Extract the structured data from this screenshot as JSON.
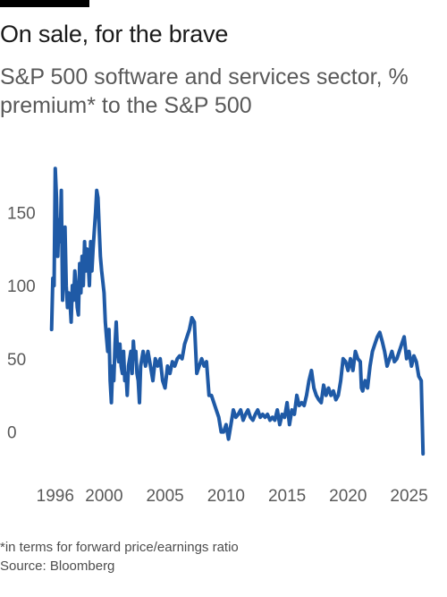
{
  "header": {
    "title": "On sale, for the brave",
    "subtitle": "S&P 500 software and services sector, % premium* to the S&P 500"
  },
  "footer": {
    "note": "*in terms for forward price/earnings ratio",
    "source": "Source: Bloomberg"
  },
  "colors": {
    "line": "#1f5aa6",
    "text": "#1a1a1a",
    "subtitle": "#595959",
    "topbar": "#000000"
  },
  "chart_data": {
    "type": "line",
    "title": "",
    "xlabel": "",
    "ylabel": "",
    "xlim": [
      1995.5,
      2026.5
    ],
    "ylim": [
      -18,
      182
    ],
    "y_ticks": [
      0,
      50,
      100,
      150
    ],
    "x_ticks": [
      1996,
      2000,
      2005,
      2010,
      2015,
      2020,
      2025
    ],
    "x_tick_labels": [
      "1996",
      "2000",
      "2005",
      "2010",
      "2015",
      "2020",
      "2025"
    ],
    "grid": false,
    "series": [
      {
        "points": [
          [
            1995.7,
            70
          ],
          [
            1995.8,
            105
          ],
          [
            1995.9,
            100
          ],
          [
            1996.0,
            180
          ],
          [
            1996.1,
            160
          ],
          [
            1996.2,
            120
          ],
          [
            1996.3,
            145
          ],
          [
            1996.4,
            130
          ],
          [
            1996.5,
            165
          ],
          [
            1996.6,
            90
          ],
          [
            1996.7,
            120
          ],
          [
            1996.8,
            140
          ],
          [
            1996.9,
            100
          ],
          [
            1997.0,
            85
          ],
          [
            1997.1,
            95
          ],
          [
            1997.2,
            90
          ],
          [
            1997.3,
            75
          ],
          [
            1997.4,
            100
          ],
          [
            1997.5,
            90
          ],
          [
            1997.6,
            110
          ],
          [
            1997.7,
            100
          ],
          [
            1997.8,
            85
          ],
          [
            1997.9,
            80
          ],
          [
            1998.0,
            115
          ],
          [
            1998.1,
            95
          ],
          [
            1998.2,
            120
          ],
          [
            1998.3,
            100
          ],
          [
            1998.4,
            130
          ],
          [
            1998.5,
            110
          ],
          [
            1998.6,
            125
          ],
          [
            1998.7,
            115
          ],
          [
            1998.8,
            100
          ],
          [
            1998.9,
            130
          ],
          [
            1999.0,
            110
          ],
          [
            1999.1,
            125
          ],
          [
            1999.3,
            150
          ],
          [
            1999.4,
            165
          ],
          [
            1999.5,
            160
          ],
          [
            1999.6,
            140
          ],
          [
            1999.7,
            120
          ],
          [
            1999.8,
            110
          ],
          [
            2000.0,
            95
          ],
          [
            2000.1,
            75
          ],
          [
            2000.2,
            65
          ],
          [
            2000.3,
            55
          ],
          [
            2000.4,
            70
          ],
          [
            2000.5,
            35
          ],
          [
            2000.6,
            20
          ],
          [
            2000.7,
            45
          ],
          [
            2000.8,
            35
          ],
          [
            2000.9,
            60
          ],
          [
            2001.0,
            75
          ],
          [
            2001.1,
            55
          ],
          [
            2001.2,
            48
          ],
          [
            2001.3,
            60
          ],
          [
            2001.4,
            45
          ],
          [
            2001.5,
            40
          ],
          [
            2001.6,
            55
          ],
          [
            2001.7,
            35
          ],
          [
            2001.8,
            40
          ],
          [
            2001.9,
            25
          ],
          [
            2002.0,
            45
          ],
          [
            2002.2,
            55
          ],
          [
            2002.3,
            40
          ],
          [
            2002.4,
            62
          ],
          [
            2002.5,
            50
          ],
          [
            2002.6,
            55
          ],
          [
            2002.7,
            40
          ],
          [
            2002.8,
            35
          ],
          [
            2002.9,
            20
          ],
          [
            2003.0,
            45
          ],
          [
            2003.2,
            55
          ],
          [
            2003.4,
            45
          ],
          [
            2003.6,
            55
          ],
          [
            2003.8,
            45
          ],
          [
            2004.0,
            35
          ],
          [
            2004.2,
            50
          ],
          [
            2004.4,
            45
          ],
          [
            2004.6,
            50
          ],
          [
            2004.8,
            35
          ],
          [
            2005.0,
            30
          ],
          [
            2005.2,
            45
          ],
          [
            2005.4,
            40
          ],
          [
            2005.6,
            48
          ],
          [
            2005.8,
            45
          ],
          [
            2006.0,
            50
          ],
          [
            2006.2,
            52
          ],
          [
            2006.4,
            50
          ],
          [
            2006.6,
            60
          ],
          [
            2006.8,
            65
          ],
          [
            2007.0,
            70
          ],
          [
            2007.2,
            78
          ],
          [
            2007.4,
            75
          ],
          [
            2007.6,
            40
          ],
          [
            2007.8,
            45
          ],
          [
            2008.0,
            50
          ],
          [
            2008.2,
            45
          ],
          [
            2008.4,
            48
          ],
          [
            2008.6,
            25
          ],
          [
            2008.8,
            25
          ],
          [
            2009.0,
            20
          ],
          [
            2009.2,
            15
          ],
          [
            2009.4,
            10
          ],
          [
            2009.6,
            0
          ],
          [
            2009.8,
            0
          ],
          [
            2010.0,
            5
          ],
          [
            2010.2,
            -5
          ],
          [
            2010.4,
            5
          ],
          [
            2010.6,
            15
          ],
          [
            2010.8,
            10
          ],
          [
            2011.0,
            12
          ],
          [
            2011.2,
            15
          ],
          [
            2011.4,
            8
          ],
          [
            2011.6,
            12
          ],
          [
            2011.8,
            15
          ],
          [
            2012.0,
            10
          ],
          [
            2012.2,
            8
          ],
          [
            2012.4,
            12
          ],
          [
            2012.6,
            15
          ],
          [
            2012.8,
            10
          ],
          [
            2013.0,
            12
          ],
          [
            2013.2,
            10
          ],
          [
            2013.4,
            12
          ],
          [
            2013.6,
            8
          ],
          [
            2013.8,
            10
          ],
          [
            2014.0,
            8
          ],
          [
            2014.2,
            15
          ],
          [
            2014.4,
            5
          ],
          [
            2014.6,
            12
          ],
          [
            2014.8,
            10
          ],
          [
            2015.0,
            20
          ],
          [
            2015.2,
            5
          ],
          [
            2015.4,
            15
          ],
          [
            2015.6,
            12
          ],
          [
            2015.8,
            25
          ],
          [
            2016.0,
            18
          ],
          [
            2016.2,
            20
          ],
          [
            2016.4,
            18
          ],
          [
            2016.6,
            25
          ],
          [
            2016.8,
            35
          ],
          [
            2017.0,
            42
          ],
          [
            2017.2,
            30
          ],
          [
            2017.4,
            25
          ],
          [
            2017.6,
            22
          ],
          [
            2017.8,
            20
          ],
          [
            2018.0,
            32
          ],
          [
            2018.2,
            25
          ],
          [
            2018.4,
            30
          ],
          [
            2018.6,
            25
          ],
          [
            2018.8,
            28
          ],
          [
            2019.0,
            22
          ],
          [
            2019.2,
            25
          ],
          [
            2019.4,
            35
          ],
          [
            2019.6,
            50
          ],
          [
            2019.8,
            48
          ],
          [
            2020.0,
            42
          ],
          [
            2020.2,
            50
          ],
          [
            2020.4,
            42
          ],
          [
            2020.6,
            55
          ],
          [
            2020.8,
            50
          ],
          [
            2021.0,
            48
          ],
          [
            2021.1,
            30
          ],
          [
            2021.2,
            28
          ],
          [
            2021.3,
            32
          ],
          [
            2021.4,
            35
          ],
          [
            2021.6,
            30
          ],
          [
            2021.8,
            45
          ],
          [
            2022.0,
            55
          ],
          [
            2022.2,
            60
          ],
          [
            2022.4,
            65
          ],
          [
            2022.6,
            68
          ],
          [
            2022.8,
            62
          ],
          [
            2023.0,
            55
          ],
          [
            2023.2,
            45
          ],
          [
            2023.4,
            50
          ],
          [
            2023.6,
            55
          ],
          [
            2023.8,
            48
          ],
          [
            2024.0,
            50
          ],
          [
            2024.2,
            55
          ],
          [
            2024.4,
            60
          ],
          [
            2024.6,
            65
          ],
          [
            2024.8,
            50
          ],
          [
            2025.0,
            55
          ],
          [
            2025.2,
            45
          ],
          [
            2025.4,
            52
          ],
          [
            2025.6,
            48
          ],
          [
            2025.8,
            38
          ],
          [
            2026.0,
            35
          ],
          [
            2026.15,
            -15
          ]
        ]
      }
    ]
  }
}
